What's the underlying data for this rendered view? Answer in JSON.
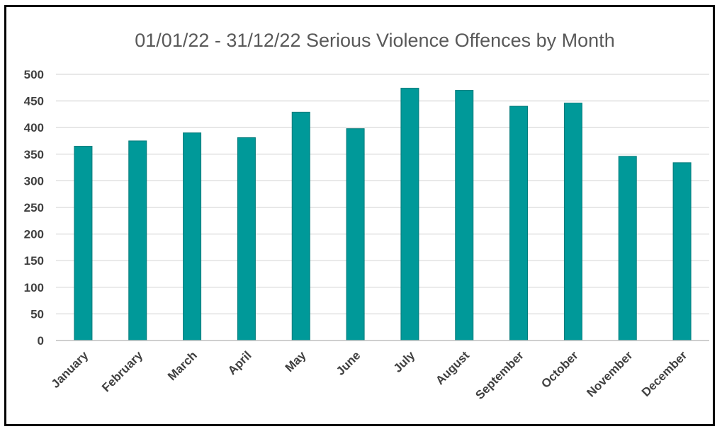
{
  "chart_data": {
    "type": "bar",
    "title": "01/01/22 - 31/12/22 Serious Violence Offences by Month",
    "xlabel": "",
    "ylabel": "",
    "categories": [
      "January",
      "February",
      "March",
      "April",
      "May",
      "June",
      "July",
      "August",
      "September",
      "October",
      "November",
      "December"
    ],
    "values": [
      365,
      375,
      390,
      381,
      429,
      398,
      474,
      470,
      440,
      446,
      346,
      334
    ],
    "ylim": [
      0,
      500
    ],
    "yticks": [
      0,
      50,
      100,
      150,
      200,
      250,
      300,
      350,
      400,
      450,
      500
    ],
    "grid": true,
    "legend": "none",
    "bar_color": "#009999",
    "bar_edge_color": "#007a7a"
  }
}
